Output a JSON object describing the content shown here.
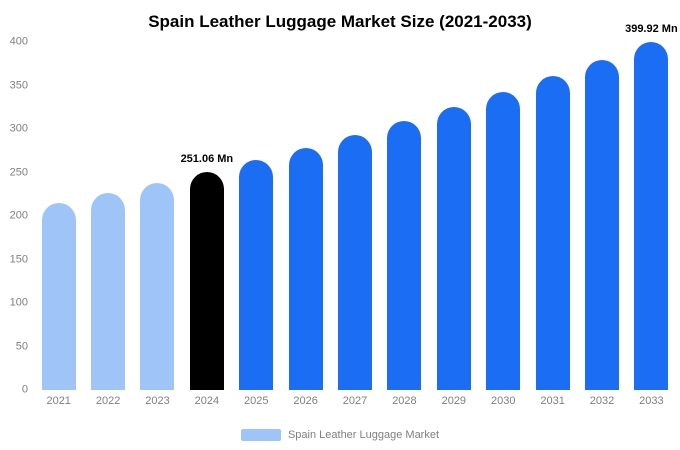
{
  "chart": {
    "title": "Spain Leather Luggage Market Size (2021-2033)",
    "legend": "Spain Leather Luggage Market",
    "colors": {
      "light": "#9fc5f8",
      "highlight": "#000000",
      "primary": "#1b6ef3"
    },
    "axis_text_color": "#7f7f7f"
  },
  "chart_data": {
    "type": "bar",
    "title": "Spain Leather Luggage Market Size (2021-2033)",
    "xlabel": "",
    "ylabel": "",
    "ylim": [
      0,
      400
    ],
    "yticks": [
      0,
      50,
      100,
      150,
      200,
      250,
      300,
      350,
      400
    ],
    "grid": false,
    "legend_position": "bottom",
    "categories": [
      "2021",
      "2022",
      "2023",
      "2024",
      "2025",
      "2026",
      "2027",
      "2028",
      "2029",
      "2030",
      "2031",
      "2032",
      "2033"
    ],
    "series": [
      {
        "name": "Spain Leather Luggage Market",
        "unit": "Mn",
        "values": [
          215.0,
          226.4,
          238.4,
          251.06,
          264.4,
          278.4,
          293.2,
          308.8,
          325.2,
          342.4,
          360.6,
          379.8,
          399.92
        ]
      }
    ],
    "bar_color_roles": [
      "light",
      "light",
      "light",
      "highlight",
      "primary",
      "primary",
      "primary",
      "primary",
      "primary",
      "primary",
      "primary",
      "primary",
      "primary"
    ],
    "annotations": [
      {
        "index": 3,
        "text": "251.06 Mn"
      },
      {
        "index": 12,
        "text": "399.92 Mn"
      }
    ]
  }
}
